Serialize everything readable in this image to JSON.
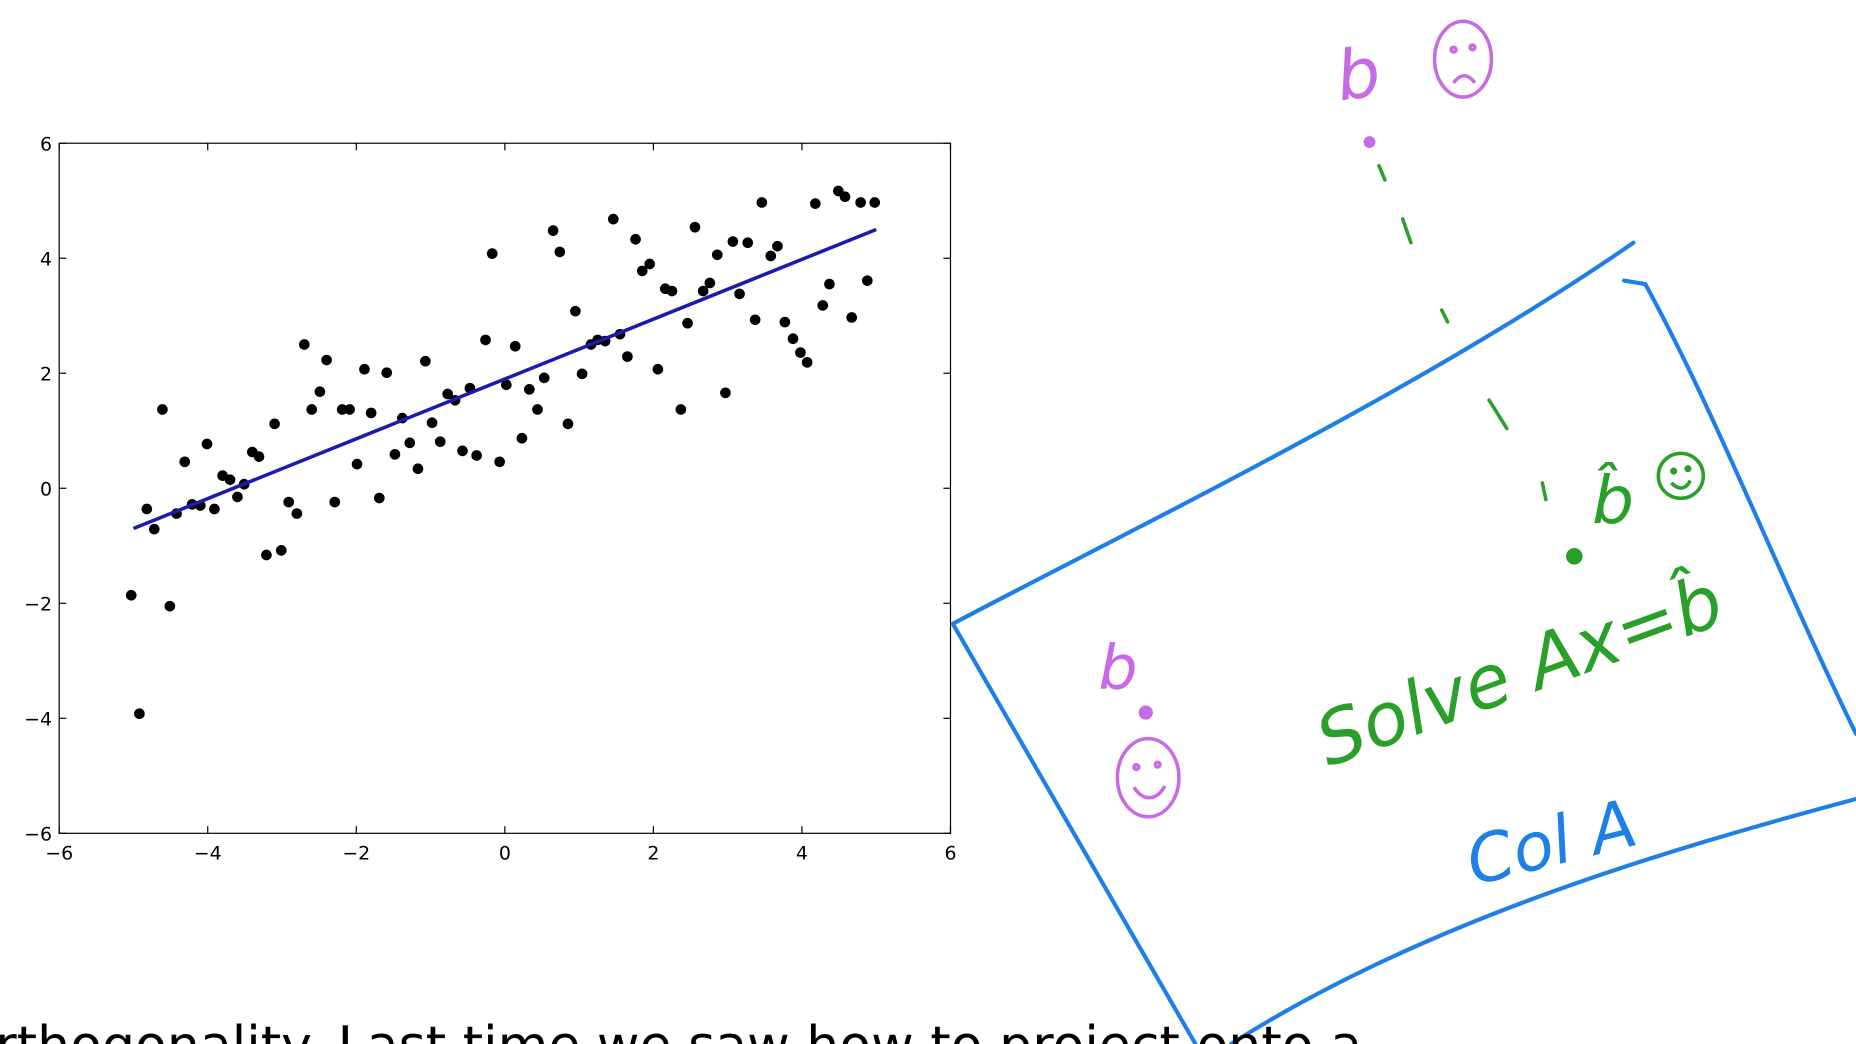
{
  "chart_data": {
    "type": "scatter",
    "xlim": [
      -6,
      6
    ],
    "ylim": [
      -6,
      6
    ],
    "xticks": [
      {
        "value": -6,
        "label": "−6"
      },
      {
        "value": -4,
        "label": "−4"
      },
      {
        "value": -2,
        "label": "−2"
      },
      0,
      2,
      4,
      6
    ],
    "yticks": [
      {
        "value": -6,
        "label": "−6"
      },
      {
        "value": -4,
        "label": "−4"
      },
      {
        "value": -2,
        "label": "−2"
      },
      0,
      2,
      4,
      6
    ],
    "grid": false,
    "series": [
      {
        "style": "markers",
        "color": "#000000",
        "x": [
          -5.03,
          -4.92,
          -4.82,
          -4.72,
          -4.61,
          -4.51,
          -4.42,
          -4.31,
          -4.21,
          -4.1,
          -4.01,
          -3.91,
          -3.8,
          -3.7,
          -3.6,
          -3.51,
          -3.4,
          -3.31,
          -3.21,
          -3.1,
          -3.01,
          -2.91,
          -2.8,
          -2.7,
          -2.6,
          -2.49,
          -2.4,
          -2.29,
          -2.19,
          -2.09,
          -1.99,
          -1.89,
          -1.8,
          -1.69,
          -1.59,
          -1.48,
          -1.38,
          -1.28,
          -1.17,
          -1.07,
          -0.98,
          -0.87,
          -0.77,
          -0.67,
          -0.57,
          -0.47,
          -0.38,
          -0.26,
          -0.17,
          -0.07,
          0.02,
          0.14,
          0.23,
          0.33,
          0.44,
          0.53,
          0.65,
          0.74,
          0.85,
          0.95,
          1.04,
          1.16,
          1.25,
          1.35,
          1.46,
          1.55,
          1.65,
          1.76,
          1.85,
          1.95,
          2.06,
          2.16,
          2.25,
          2.37,
          2.46,
          2.56,
          2.67,
          2.76,
          2.86,
          2.97,
          3.07,
          3.16,
          3.27,
          3.37,
          3.46,
          3.58,
          3.67,
          3.77,
          3.88,
          3.98,
          4.07,
          4.18,
          4.28,
          4.37,
          4.49,
          4.58,
          4.67,
          4.79,
          4.88,
          4.98
        ],
        "values": [
          -1.86,
          -3.92,
          -0.36,
          -0.71,
          1.37,
          -2.05,
          -0.44,
          0.46,
          -0.28,
          -0.3,
          0.77,
          -0.36,
          0.22,
          0.15,
          -0.15,
          0.07,
          0.63,
          0.55,
          -1.16,
          1.12,
          -1.08,
          -0.24,
          -0.44,
          2.5,
          1.37,
          1.68,
          2.23,
          -0.24,
          1.37,
          1.37,
          0.42,
          2.07,
          1.31,
          -0.17,
          2.01,
          0.59,
          1.22,
          0.79,
          0.34,
          2.21,
          1.14,
          0.81,
          1.64,
          1.53,
          0.65,
          1.74,
          0.57,
          2.58,
          4.08,
          0.46,
          1.8,
          2.47,
          0.87,
          1.72,
          1.37,
          1.92,
          4.48,
          4.11,
          1.12,
          3.08,
          1.99,
          2.5,
          2.58,
          2.56,
          4.68,
          2.68,
          2.29,
          4.33,
          3.78,
          3.9,
          2.07,
          3.47,
          3.43,
          1.37,
          2.87,
          4.54,
          3.43,
          3.57,
          4.06,
          1.66,
          4.29,
          3.38,
          4.27,
          2.93,
          4.97,
          4.04,
          4.21,
          2.89,
          2.6,
          2.36,
          2.19,
          4.95,
          3.18,
          3.55,
          5.17,
          5.07,
          2.97,
          4.97,
          3.61,
          4.97
        ]
      },
      {
        "style": "line",
        "color": "#1c1caa",
        "x": [
          -5,
          5
        ],
        "values": [
          -0.7,
          4.5
        ]
      }
    ]
  },
  "annotations": {
    "b_top": "b",
    "b_bottom": "b",
    "b_hat": "b̂",
    "solve": "Solve Ax=b̂",
    "col_a": "Col A"
  },
  "body_text": "rthogonality. Last time we saw how to project onto a"
}
